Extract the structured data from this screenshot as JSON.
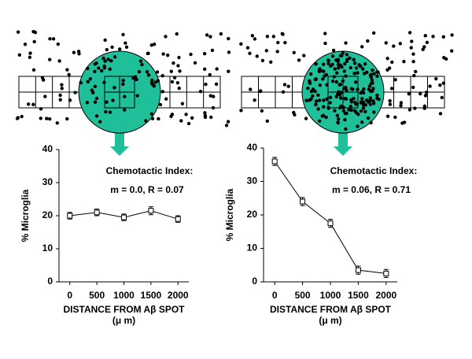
{
  "chart_data": [
    {
      "type": "line",
      "color": "#000000",
      "x": [
        0,
        500,
        1000,
        1500,
        2000
      ],
      "values": [
        20,
        21,
        19.5,
        21.5,
        19
      ],
      "errors": [
        1,
        1,
        1,
        1.2,
        1
      ],
      "xlim": [
        -200,
        2200
      ],
      "ylim": [
        0,
        40
      ],
      "xticks": [
        0,
        500,
        1000,
        1500,
        2000
      ],
      "yticks": [
        0,
        10,
        20,
        30,
        40
      ],
      "y_label": "% Microglia",
      "x_label": "DISTANCE FROM Aβ SPOT",
      "x_unit": "(μ m)",
      "annotations": [
        "Chemotactic Index:",
        "m = 0.0, R = 0.07"
      ]
    },
    {
      "type": "line",
      "color": "#000000",
      "x": [
        0,
        500,
        1000,
        1500,
        2000
      ],
      "values": [
        36,
        24,
        17.5,
        3.5,
        2.5
      ],
      "errors": [
        1.2,
        1.2,
        1.2,
        1.2,
        1.2
      ],
      "xlim": [
        -200,
        2200
      ],
      "ylim": [
        0,
        40
      ],
      "xticks": [
        0,
        500,
        1000,
        1500,
        2000
      ],
      "yticks": [
        0,
        10,
        20,
        30,
        40
      ],
      "y_label": "% Microglia",
      "x_label": "DISTANCE FROM Aβ SPOT",
      "x_unit": "(μ m)",
      "annotations": [
        "Chemotactic Index:",
        "m = 0.06, R = 0.71"
      ]
    }
  ]
}
